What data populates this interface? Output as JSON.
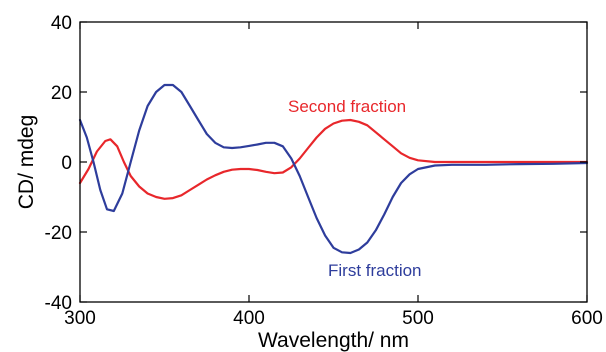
{
  "chart_data": {
    "type": "line",
    "title": "",
    "xlabel": "Wavelength/ nm",
    "ylabel": "CD/ mdeg",
    "xlim": [
      300,
      600
    ],
    "ylim": [
      -40,
      40
    ],
    "x_ticks": [
      300,
      400,
      500,
      600
    ],
    "y_ticks": [
      -40,
      -20,
      0,
      20,
      40
    ],
    "x_tick_labels": [
      "300",
      "400",
      "500",
      "600"
    ],
    "y_tick_labels": [
      "-40",
      "-20",
      "0",
      "20",
      "40"
    ],
    "grid": false,
    "legend": "none",
    "series": [
      {
        "name": "Second fraction",
        "color": "#e8272b",
        "x": [
          300,
          305,
          310,
          315,
          318,
          322,
          326,
          330,
          335,
          340,
          345,
          350,
          355,
          360,
          365,
          370,
          375,
          380,
          385,
          390,
          395,
          400,
          405,
          410,
          415,
          420,
          425,
          430,
          435,
          440,
          445,
          450,
          455,
          460,
          465,
          470,
          475,
          480,
          485,
          490,
          495,
          500,
          510,
          520,
          530,
          540,
          560,
          580,
          600
        ],
        "y": [
          -6,
          -2,
          3,
          6,
          6.5,
          4.5,
          0,
          -4,
          -7,
          -9,
          -10,
          -10.5,
          -10.3,
          -9.5,
          -8,
          -6.5,
          -5,
          -3.8,
          -2.8,
          -2.2,
          -2,
          -2,
          -2.3,
          -2.8,
          -3.2,
          -3,
          -1.5,
          1,
          4,
          7,
          9.5,
          11,
          11.8,
          12,
          11.5,
          10.5,
          8.5,
          6.5,
          4.5,
          2.5,
          1.2,
          0.5,
          0,
          0,
          0,
          0,
          0,
          0,
          0
        ]
      },
      {
        "name": "First fraction",
        "color": "#2e3d9c",
        "x": [
          300,
          304,
          308,
          312,
          316,
          320,
          325,
          330,
          335,
          340,
          345,
          350,
          355,
          360,
          365,
          370,
          375,
          380,
          385,
          390,
          395,
          400,
          405,
          410,
          415,
          420,
          425,
          430,
          435,
          440,
          445,
          450,
          455,
          460,
          465,
          470,
          475,
          480,
          485,
          490,
          495,
          500,
          510,
          520,
          530,
          540,
          560,
          580,
          600
        ],
        "y": [
          12,
          7,
          0,
          -8,
          -13.5,
          -14,
          -9,
          0,
          9,
          16,
          20,
          22,
          22,
          20,
          16,
          12,
          8,
          5.5,
          4.2,
          4,
          4.2,
          4.6,
          5,
          5.5,
          5.5,
          4.5,
          1,
          -4,
          -10,
          -16,
          -21,
          -24.5,
          -25.8,
          -26,
          -25,
          -23,
          -19.5,
          -15,
          -10,
          -6,
          -3.5,
          -2,
          -1,
          -0.8,
          -0.8,
          -0.8,
          -0.6,
          -0.5,
          -0.3
        ]
      }
    ]
  }
}
